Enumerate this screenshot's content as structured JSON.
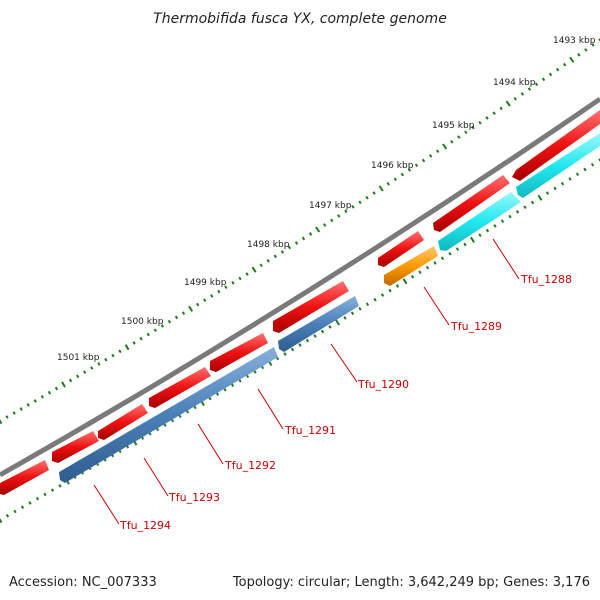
{
  "title": "Thermobifida fusca YX, complete genome",
  "scale_labels": [
    "1493 kbp",
    "1494 kbp",
    "1495 kbp",
    "1496 kbp",
    "1497 kbp",
    "1498 kbp",
    "1499 kbp",
    "1500 kbp",
    "1501 kbp"
  ],
  "gene_labels": [
    "Tfu_1288",
    "Tfu_1289",
    "Tfu_1290",
    "Tfu_1291",
    "Tfu_1292",
    "Tfu_1293",
    "Tfu_1294"
  ],
  "footer": {
    "accession": "Accession: NC_007333",
    "topology": "Topology: circular; Length: 3,642,249 bp; Genes: 3,176"
  },
  "colors": {
    "backbone": "#7a7a7a",
    "forward_gene": "#ee1111",
    "reverse_gene_blue": "#4a80b8",
    "reverse_gene_cyan": "#22e8f0",
    "reverse_gene_orange": "#ff9900",
    "ticks": "#1e7a1e",
    "label": "#cc0000"
  }
}
